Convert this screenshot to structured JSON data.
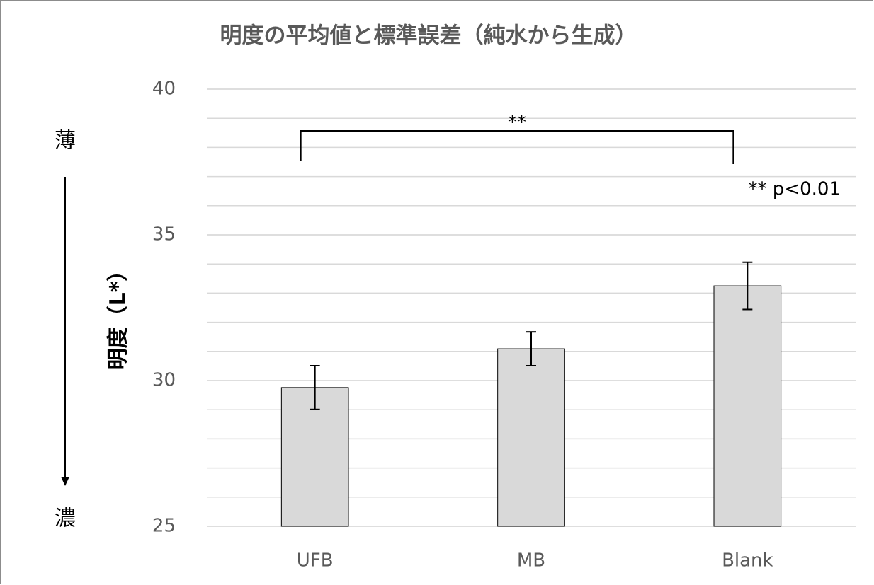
{
  "chart_data": {
    "type": "bar",
    "title": "明度の平均値と標準誤差（純水から生成）",
    "y_label": "明度（L*）",
    "categories": [
      "UFB",
      "MB",
      "Blank"
    ],
    "values": [
      29.76,
      31.09,
      33.25
    ],
    "errors": [
      0.75,
      0.58,
      0.81
    ],
    "color": "#d9d9d9",
    "ylim": [
      25,
      40
    ],
    "yticks": [
      25,
      30,
      35,
      40
    ],
    "minor_grid_step": 1,
    "grid": true,
    "annotations": {
      "significance": "**",
      "note": "** p<0.01",
      "top": "薄",
      "bottom": "濃"
    }
  }
}
